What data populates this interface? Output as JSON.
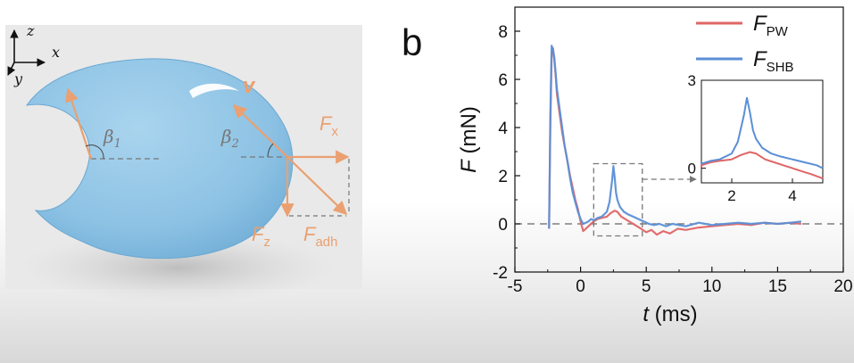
{
  "panel_a": {
    "axes": {
      "z": "z",
      "x": "x",
      "y": "y"
    },
    "angles": {
      "beta1_symbol": "β",
      "beta1_sub": "1",
      "beta2_symbol": "β",
      "beta2_sub": "2"
    },
    "velocity_label": "v",
    "forces": {
      "fx_main": "F",
      "fx_sub": "x",
      "fz_main": "F",
      "fz_sub": "z",
      "fadh_main": "F",
      "fadh_sub": "adh"
    },
    "colors": {
      "drop": "#8ec5e6",
      "substrate": "#e8e8e8",
      "force": "#eaa070"
    }
  },
  "panel_label": "b",
  "chart_data": {
    "type": "line",
    "xlabel_main": "t",
    "xlabel_unit": " (ms)",
    "ylabel_main": "F",
    "ylabel_unit": " (mN)",
    "xlim": [
      -5,
      20
    ],
    "ylim": [
      -2,
      9
    ],
    "xticks": [
      -5,
      0,
      5,
      10,
      15,
      20
    ],
    "yticks": [
      -2,
      0,
      2,
      4,
      6,
      8
    ],
    "baseline": 0,
    "legend_position": "top-right",
    "series": [
      {
        "name": "F",
        "name_sub": "PW",
        "color": "#e06666",
        "x": [
          -2.4,
          -2.3,
          -2.2,
          -2.1,
          -2.0,
          -1.9,
          -1.8,
          -1.6,
          -1.4,
          -1.2,
          -1.0,
          -0.8,
          -0.6,
          -0.4,
          -0.2,
          0.0,
          0.2,
          0.4,
          0.6,
          0.8,
          1.0,
          1.3,
          1.6,
          2.0,
          2.3,
          2.6,
          2.8,
          3.1,
          3.4,
          3.7,
          4.0,
          4.3,
          4.6,
          5.0,
          5.4,
          5.8,
          6.3,
          6.8,
          7.4,
          8.0,
          9.0,
          10.0,
          11.0,
          12.0,
          13.0,
          14.0,
          15.0,
          16.0,
          16.8
        ],
        "y": [
          -0.2,
          4.0,
          7.0,
          7.3,
          6.8,
          6.2,
          5.4,
          4.6,
          3.8,
          3.2,
          2.6,
          2.0,
          1.5,
          1.0,
          0.6,
          0.1,
          -0.3,
          -0.2,
          -0.1,
          0.0,
          0.1,
          0.2,
          0.25,
          0.3,
          0.45,
          0.55,
          0.5,
          0.3,
          0.2,
          0.1,
          0.0,
          -0.1,
          -0.2,
          -0.35,
          -0.25,
          -0.45,
          -0.3,
          -0.4,
          -0.2,
          -0.25,
          -0.15,
          -0.1,
          -0.05,
          0.0,
          -0.05,
          0.05,
          0.0,
          0.05,
          0.0
        ]
      },
      {
        "name": "F",
        "name_sub": "SHB",
        "color": "#5b8fd6",
        "x": [
          -2.4,
          -2.3,
          -2.2,
          -2.1,
          -2.0,
          -1.9,
          -1.8,
          -1.6,
          -1.4,
          -1.2,
          -1.0,
          -0.8,
          -0.6,
          -0.4,
          -0.2,
          0.0,
          0.2,
          0.4,
          0.6,
          0.8,
          1.0,
          1.3,
          1.6,
          2.0,
          2.2,
          2.4,
          2.5,
          2.6,
          2.7,
          2.8,
          3.0,
          3.3,
          3.6,
          4.0,
          4.4,
          4.8,
          5.2,
          5.6,
          6.0,
          6.5,
          7.0,
          8.0,
          9.0,
          10.0,
          11.0,
          12.0,
          13.0,
          14.0,
          15.0,
          16.0,
          16.8
        ],
        "y": [
          -0.2,
          4.5,
          7.4,
          7.2,
          6.9,
          6.3,
          5.6,
          4.8,
          4.0,
          3.2,
          2.6,
          1.9,
          1.3,
          0.9,
          0.5,
          0.2,
          0.0,
          0.05,
          0.1,
          0.2,
          0.15,
          0.25,
          0.3,
          0.5,
          0.9,
          1.8,
          2.4,
          1.9,
          1.3,
          1.0,
          0.7,
          0.5,
          0.4,
          0.3,
          0.2,
          0.1,
          0.0,
          -0.05,
          0.0,
          -0.1,
          0.0,
          -0.1,
          0.05,
          -0.05,
          0.0,
          0.05,
          0.0,
          0.05,
          0.0,
          0.05,
          0.1
        ]
      }
    ],
    "inset": {
      "xlim": [
        1,
        5
      ],
      "ylim": [
        -0.5,
        3
      ],
      "xticks": [
        2,
        4
      ],
      "yticks_labeled": [
        0,
        3
      ],
      "zoom_region": {
        "x": [
          1,
          4.7
        ],
        "y": [
          -0.5,
          2.5
        ]
      }
    }
  }
}
